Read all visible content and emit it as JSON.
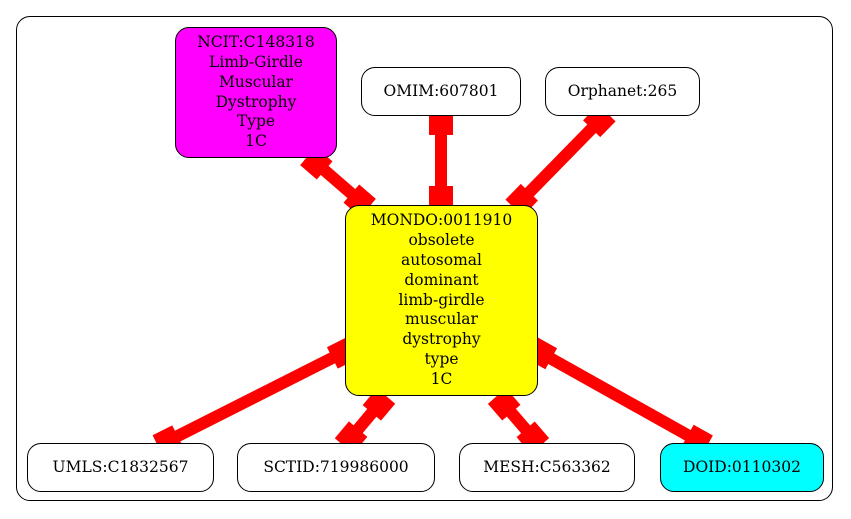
{
  "diagram": {
    "nodes": [
      {
        "id": "ncit",
        "label": "NCIT:C148318\nLimb-Girdle\nMuscular\nDystrophy\nType\n1C",
        "fill": "#ff00ff"
      },
      {
        "id": "omim",
        "label": "OMIM:607801",
        "fill": "#ffffff"
      },
      {
        "id": "orphanet",
        "label": "Orphanet:265",
        "fill": "#ffffff"
      },
      {
        "id": "mondo",
        "label": "MONDO:0011910\nobsolete\nautosomal\ndominant\nlimb-girdle\nmuscular\ndystrophy\ntype\n1C",
        "fill": "#ffff00"
      },
      {
        "id": "umls",
        "label": "UMLS:C1832567",
        "fill": "#ffffff"
      },
      {
        "id": "sctid",
        "label": "SCTID:719986000",
        "fill": "#ffffff"
      },
      {
        "id": "mesh",
        "label": "MESH:C563362",
        "fill": "#ffffff"
      },
      {
        "id": "doid",
        "label": "DOID:0110302",
        "fill": "#00ffff"
      }
    ],
    "edges": [
      {
        "from": "ncit",
        "to": "mondo",
        "color": "#ff0000"
      },
      {
        "from": "omim",
        "to": "mondo",
        "color": "#ff0000"
      },
      {
        "from": "orphanet",
        "to": "mondo",
        "color": "#ff0000"
      },
      {
        "from": "mondo",
        "to": "umls",
        "color": "#ff0000"
      },
      {
        "from": "mondo",
        "to": "sctid",
        "color": "#ff0000"
      },
      {
        "from": "mondo",
        "to": "mesh",
        "color": "#ff0000"
      },
      {
        "from": "mondo",
        "to": "doid",
        "color": "#ff0000"
      }
    ]
  }
}
